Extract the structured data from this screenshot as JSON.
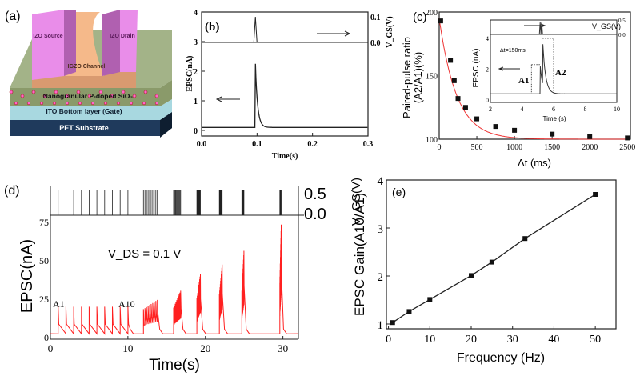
{
  "panel_a": {
    "label": "(a)",
    "layers": {
      "source": "IZO Source",
      "drain": "IZO Drain",
      "channel": "IGZO Channel",
      "dielectric": "Nanogranular P-doped SiO₂",
      "gate": "ITO Bottom layer (Gate)",
      "substrate": "PET Substrate"
    },
    "colors": {
      "electrode": "#e98de9",
      "channel": "#f5b98a",
      "dielectric": "#8a9a6a",
      "gate": "#a8d8e0",
      "substrate": "#1f3a5c"
    }
  },
  "chart_data": [
    {
      "id": "b",
      "label": "(b)",
      "type": "line",
      "xlabel": "Time(s)",
      "ylabel": "EPSC(nA)",
      "y2label": "V_GS(V)",
      "xlim": [
        0,
        0.3
      ],
      "ylim": [
        -0.2,
        4
      ],
      "y2lim": [
        0,
        0.12
      ],
      "xticks": [
        "0.0",
        "0.1",
        "0.2",
        "0.3"
      ],
      "yticks": [
        "0",
        "1",
        "2",
        "3",
        "4"
      ],
      "y2ticks": [
        "0.0",
        "0.1"
      ],
      "epsc": {
        "baseline": 0.1,
        "peak_time": 0.097,
        "peak": 2.25
      },
      "vgs": {
        "pulse_time": 0.097,
        "amplitude": 0.1
      },
      "color": "#222222"
    },
    {
      "id": "c",
      "label": "(c)",
      "type": "scatter",
      "xlabel": "Δt (ms)",
      "ylabel": "Paired-pulse ratio",
      "ylabel2": "(A2/A1)(%)",
      "xlim": [
        0,
        2540
      ],
      "ylim": [
        100,
        200
      ],
      "xticks": [
        "0",
        "500",
        "1000",
        "1500",
        "2000",
        "2500"
      ],
      "yticks": [
        "100",
        "150",
        "200"
      ],
      "x": [
        20,
        150,
        200,
        250,
        350,
        500,
        750,
        1000,
        1500,
        2000,
        2500
      ],
      "y": [
        193,
        162,
        146,
        132,
        125,
        116,
        110,
        107,
        104,
        102,
        101
      ],
      "fit_color": "#ee3333",
      "inset": {
        "xlabel": "Time (s)",
        "ylabel": "EPSC (nA)",
        "y2label": "V_GS(V)",
        "xlim": [
          2,
          10
        ],
        "ylim": [
          0,
          4
        ],
        "xticks": [
          "2",
          "4",
          "6",
          "8",
          "10"
        ],
        "yticks": [
          "0",
          "2",
          "4"
        ],
        "y2ticks": [
          "0.0",
          "0.5"
        ],
        "annotation": "Δt=150ms",
        "a1": "A1",
        "a2": "A2",
        "baseline": 0.4,
        "a1_peak": 2.3,
        "a2_peak": 4.0,
        "pulse1": 5.15,
        "pulse2": 5.3
      }
    },
    {
      "id": "d",
      "label": "(d)",
      "type": "line",
      "xlabel": "Time(s)",
      "ylabel": "EPSC(nA)",
      "y2label": "V_GS(V)",
      "annotation": "V_DS = 0.1 V",
      "a1": "A1",
      "a10": "A10",
      "xlim": [
        0,
        32
      ],
      "ylim": [
        0,
        75
      ],
      "y2lim": [
        0,
        0.5
      ],
      "xticks": [
        "0",
        "10",
        "20",
        "30"
      ],
      "yticks": [
        "0",
        "25",
        "50",
        "75"
      ],
      "y2ticks": [
        "0.0",
        "0.5"
      ],
      "baseline": 2,
      "trains": [
        {
          "frequency_hz": 1,
          "start": 1,
          "pulses": 10,
          "first_peak": 19.6,
          "last_peak": 19.6
        },
        {
          "frequency_hz": 5,
          "start": 12,
          "pulses": 10,
          "first_peak": 18,
          "last_peak": 24
        },
        {
          "frequency_hz": 10,
          "start": 15.9,
          "pulses": 10,
          "first_peak": 19,
          "last_peak": 30
        },
        {
          "frequency_hz": 20,
          "start": 18.9,
          "pulses": 10,
          "first_peak": 25,
          "last_peak": 41
        },
        {
          "frequency_hz": 25,
          "start": 21.8,
          "pulses": 10,
          "first_peak": 28,
          "last_peak": 47
        },
        {
          "frequency_hz": 33,
          "start": 24.7,
          "pulses": 10,
          "first_peak": 30,
          "last_peak": 56
        },
        {
          "frequency_hz": 50,
          "start": 29.6,
          "pulses": 10,
          "first_peak": 35,
          "last_peak": 73
        }
      ],
      "color": "#ff2020"
    },
    {
      "id": "e",
      "label": "(e)",
      "type": "line",
      "xlabel": "Frequency (Hz)",
      "ylabel": "EPSC Gain(A10/A1)",
      "xlim": [
        -0.5,
        55
      ],
      "ylim": [
        0.9,
        4
      ],
      "xticks": [
        "0",
        "10",
        "20",
        "30",
        "40",
        "50"
      ],
      "yticks": [
        "1",
        "2",
        "3",
        "4"
      ],
      "x": [
        1,
        5,
        10,
        20,
        25,
        33,
        50
      ],
      "y": [
        1.03,
        1.26,
        1.51,
        2.01,
        2.29,
        2.78,
        3.7
      ]
    }
  ]
}
